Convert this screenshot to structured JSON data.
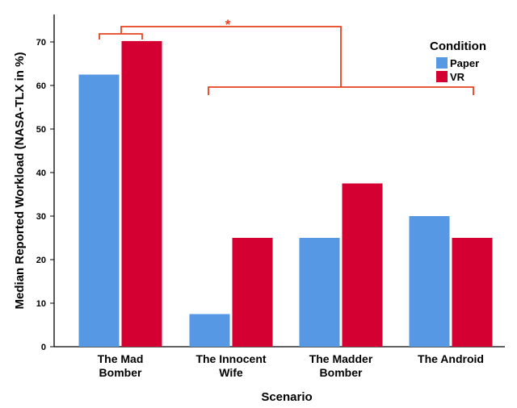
{
  "chart_data": {
    "type": "bar",
    "title": "",
    "xlabel": "Scenario",
    "ylabel": "Median Reported Workload (NASA-TLX in %)",
    "ylim": [
      0,
      75
    ],
    "yticks": [
      0,
      10,
      20,
      30,
      40,
      50,
      60,
      70
    ],
    "grid": false,
    "categories": [
      [
        "The Mad",
        "Bomber"
      ],
      [
        "The Innocent",
        "Wife"
      ],
      [
        "The Madder",
        "Bomber"
      ],
      [
        "The Android"
      ]
    ],
    "series": [
      {
        "name": "Paper",
        "values": [
          62.5,
          7.5,
          25,
          30
        ],
        "color": "#5698e4"
      },
      {
        "name": "VR",
        "values": [
          70.2,
          25,
          37.5,
          25
        ],
        "color": "#d50032"
      }
    ],
    "legend": {
      "title": "Condition",
      "placement": "top-right"
    },
    "annotations": [
      {
        "type": "significance-bracket",
        "label": "*",
        "color": "#e8421f"
      }
    ]
  }
}
